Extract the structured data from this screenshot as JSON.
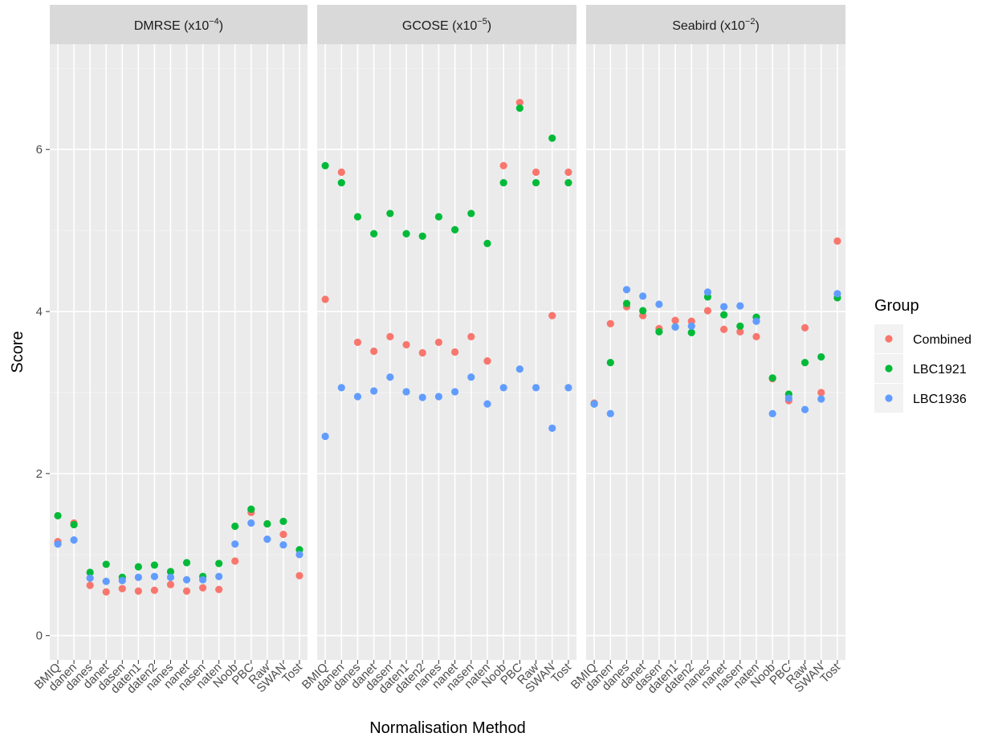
{
  "chart_data": {
    "type": "scatter",
    "ylabel": "Score",
    "xlabel": "Normalisation Method",
    "ylim": [
      -0.3,
      7.3
    ],
    "yticks": [
      0,
      2,
      4,
      6
    ],
    "categories": [
      "BMIQ",
      "danen",
      "danes",
      "danet",
      "dasen",
      "daten1",
      "daten2",
      "nanes",
      "nanet",
      "nasen",
      "naten",
      "Noob",
      "PBC",
      "Raw",
      "SWAN",
      "Tost"
    ],
    "legend": {
      "title": "Group",
      "position": "right",
      "entries": [
        "Combined",
        "LBC1921",
        "LBC1936"
      ]
    },
    "colors": {
      "Combined": "#F8766D",
      "LBC1921": "#00BA38",
      "LBC1936": "#619CFF"
    },
    "panel_background": "#EBEBEB",
    "strip_background": "#D9D9D9",
    "grid": true,
    "panels": [
      {
        "label_main": "DMRSE (x10",
        "label_exp": "−4",
        "label_end": ")",
        "series": [
          {
            "name": "Combined",
            "values": [
              1.16,
              1.39,
              0.62,
              0.54,
              0.58,
              0.55,
              0.56,
              0.63,
              0.55,
              0.59,
              0.57,
              0.92,
              1.52,
              1.38,
              1.25,
              0.74
            ]
          },
          {
            "name": "LBC1921",
            "values": [
              1.48,
              1.37,
              0.78,
              0.88,
              0.72,
              0.85,
              0.87,
              0.79,
              0.9,
              0.73,
              0.89,
              1.35,
              1.56,
              1.38,
              1.41,
              1.06
            ]
          },
          {
            "name": "LBC1936",
            "values": [
              1.13,
              1.18,
              0.71,
              0.67,
              0.68,
              0.72,
              0.73,
              0.72,
              0.69,
              0.69,
              0.73,
              1.13,
              1.39,
              1.19,
              1.12,
              1.0
            ]
          }
        ]
      },
      {
        "label_main": "GCOSE (x10",
        "label_exp": "−5",
        "label_end": ")",
        "series": [
          {
            "name": "Combined",
            "values": [
              4.15,
              5.72,
              3.62,
              3.51,
              3.69,
              3.59,
              3.49,
              3.62,
              3.5,
              3.69,
              3.39,
              5.8,
              6.58,
              5.72,
              3.95,
              5.72
            ]
          },
          {
            "name": "LBC1921",
            "values": [
              5.8,
              5.59,
              5.17,
              4.96,
              5.21,
              4.96,
              4.93,
              5.17,
              5.01,
              5.21,
              4.84,
              5.59,
              6.51,
              5.59,
              6.14,
              5.59
            ]
          },
          {
            "name": "LBC1936",
            "values": [
              2.46,
              3.06,
              2.95,
              3.02,
              3.19,
              3.01,
              2.94,
              2.95,
              3.01,
              3.19,
              2.86,
              3.06,
              3.29,
              3.06,
              2.56,
              3.06
            ]
          }
        ]
      },
      {
        "label_main": "Seabird (x10",
        "label_exp": "−2",
        "label_end": ")",
        "series": [
          {
            "name": "Combined",
            "values": [
              2.87,
              3.85,
              4.06,
              3.95,
              3.79,
              3.89,
              3.88,
              4.01,
              3.78,
              3.75,
              3.69,
              3.17,
              2.9,
              3.8,
              3.0,
              4.87
            ]
          },
          {
            "name": "LBC1921",
            "values": [
              2.86,
              3.37,
              4.1,
              4.01,
              3.75,
              3.81,
              3.74,
              4.18,
              3.96,
              3.82,
              3.93,
              3.18,
              2.98,
              3.37,
              3.44,
              4.17
            ]
          },
          {
            "name": "LBC1936",
            "values": [
              2.86,
              2.74,
              4.27,
              4.19,
              4.09,
              3.81,
              3.82,
              4.24,
              4.06,
              4.07,
              3.88,
              2.74,
              2.93,
              2.79,
              2.92,
              4.22
            ]
          }
        ]
      }
    ]
  }
}
